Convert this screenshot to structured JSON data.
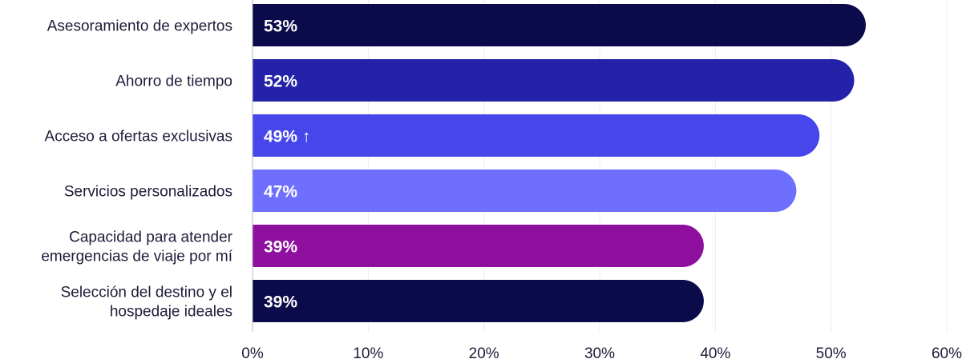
{
  "chart_data": {
    "type": "bar",
    "orientation": "horizontal",
    "categories": [
      [
        "Asesoramiento de expertos"
      ],
      [
        "Ahorro de tiempo"
      ],
      [
        "Acceso a ofertas exclusivas"
      ],
      [
        "Servicios personalizados"
      ],
      [
        "Capacidad para atender",
        "emergencias de viaje por mí"
      ],
      [
        "Selección del destino y el",
        "hospedaje ideales"
      ]
    ],
    "values": [
      53,
      52,
      49,
      47,
      39,
      39
    ],
    "value_labels": [
      "53%",
      "52%",
      "49% ↑",
      "47%",
      "39%",
      "39%"
    ],
    "colors": [
      "#0b0a4a",
      "#2422a8",
      "#4646ea",
      "#6f6fff",
      "#8f0f9f",
      "#0b0a4a"
    ],
    "xlim": [
      0,
      60
    ],
    "xticks": [
      0,
      10,
      20,
      30,
      40,
      50,
      60
    ],
    "xtick_labels": [
      "0%",
      "10%",
      "20%",
      "30%",
      "40%",
      "50%",
      "60%"
    ],
    "grid": true
  }
}
